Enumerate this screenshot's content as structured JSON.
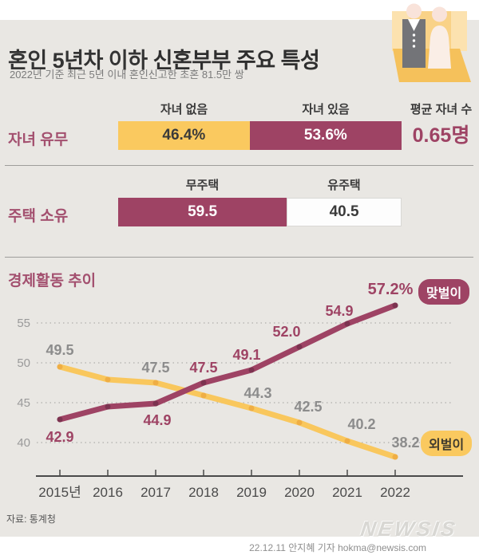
{
  "header": {
    "title_regular": "혼인 5년차 이하 ",
    "title_bold": "신혼부부 주요 특성",
    "subtitle": "2022년 기준 최근 5년 이내 혼인신고한 초혼 81.5만 쌍",
    "icon": "wedding-couple"
  },
  "colors": {
    "maroon": "#9E4364",
    "yellow": "#FAC95F",
    "background_gray": "#E9E7E3",
    "dark_text": "#3a3a3a",
    "gray_label": "#8C8C8C"
  },
  "sections": {
    "children": {
      "label": "자녀 유무",
      "col1_header": "자녀 없음",
      "col2_header": "자녀 있음",
      "avg_header": "평균 자녀 수",
      "seg1_value": "46.4%",
      "seg1_pct": 46.4,
      "seg2_value": "53.6%",
      "seg2_pct": 53.6,
      "avg_value": "0.65명"
    },
    "housing": {
      "label": "주택 소유",
      "col1_header": "무주택",
      "col2_header": "유주택",
      "seg1_value": "59.5",
      "seg1_pct": 59.5,
      "seg2_value": "40.5",
      "seg2_pct": 40.5
    },
    "economic": {
      "title": "경제활동 추이"
    }
  },
  "chart_data": {
    "type": "line",
    "title": "경제활동 추이",
    "x": [
      "2015년",
      "2016",
      "2017",
      "2018",
      "2019",
      "2020",
      "2021",
      "2022"
    ],
    "yticks": [
      55,
      50,
      45,
      40
    ],
    "ylim": [
      36,
      58
    ],
    "grid": "horizontal-dotted",
    "legend_position": "right-of-line-ends",
    "series": [
      {
        "name": "맞벌이",
        "color": "#9E4364",
        "dot_color": "#7C3350",
        "label_color": "#9E4364",
        "values": [
          42.9,
          44.5,
          44.9,
          47.5,
          49.1,
          52.0,
          54.9,
          57.2
        ],
        "labels": [
          "42.9",
          null,
          "44.9",
          "47.5",
          "49.1",
          "52.0",
          "54.9",
          "57.2%"
        ],
        "label_offsets": [
          [
            0,
            28
          ],
          null,
          [
            2,
            27
          ],
          [
            0,
            -13
          ],
          [
            -6,
            -13
          ],
          [
            -16,
            -13
          ],
          [
            -10,
            -10
          ],
          [
            -6,
            -14
          ]
        ],
        "label_sizes": [
          18,
          null,
          18,
          18,
          18,
          18,
          18,
          20
        ]
      },
      {
        "name": "외벌이",
        "color": "#F9C75D",
        "dot_color": "#EFAE45",
        "label_color": "#8C8C8C",
        "values": [
          49.5,
          47.9,
          47.5,
          45.9,
          44.3,
          42.5,
          40.2,
          38.2
        ],
        "labels": [
          "49.5",
          null,
          "47.5",
          null,
          "44.3",
          "42.5",
          "40.2",
          "38.2"
        ],
        "label_offsets": [
          [
            0,
            -15
          ],
          null,
          [
            0,
            -13
          ],
          null,
          [
            8,
            -13
          ],
          [
            11,
            -14
          ],
          [
            18,
            -15
          ],
          [
            13,
            -12
          ]
        ],
        "label_sizes": [
          18,
          null,
          18,
          null,
          18,
          18,
          18,
          18
        ]
      }
    ]
  },
  "footer": {
    "source": "자료: 통계청",
    "credit": "22.12.11 안지혜 기자 hokma@newsis.com",
    "watermark": "NEWSIS"
  }
}
